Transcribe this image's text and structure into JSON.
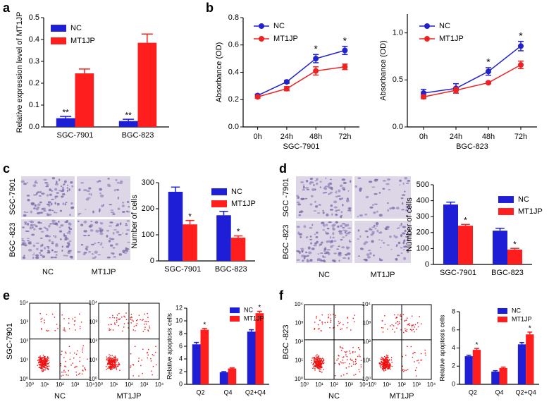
{
  "panel_labels": [
    "a",
    "b",
    "c",
    "d",
    "e",
    "f"
  ],
  "chart_data": [
    {
      "type": "bar",
      "ylabel": "Relative expression level of MT1JP",
      "categories": [
        "SGC-7901",
        "BGC-823"
      ],
      "series": [
        {
          "name": "NC",
          "color": "#1e1ed6",
          "values": [
            0.04,
            0.027
          ],
          "errors": [
            0.008,
            0.008
          ],
          "annotations": [
            "**",
            "**"
          ]
        },
        {
          "name": "MT1JP",
          "color": "#ff1e1e",
          "values": [
            0.245,
            0.385
          ],
          "errors": [
            0.02,
            0.04
          ],
          "annotations": [
            null,
            null
          ]
        }
      ],
      "ylim": [
        0,
        0.5
      ],
      "yticks": [
        {
          "value": 0,
          "label": "0.0"
        },
        0.1,
        0.2,
        0.3,
        0.4,
        0.5
      ],
      "legend": "upper left"
    },
    {
      "type": "line",
      "ylabel": "Absorbance (OD)",
      "xlabel": "SGC-7901",
      "categories": [
        "0h",
        "24h",
        "48h",
        "72h"
      ],
      "series": [
        {
          "name": "NC",
          "color": "#2222cc",
          "values": [
            0.23,
            0.33,
            0.5,
            0.56
          ],
          "errors": [
            0.01,
            0.01,
            0.03,
            0.03
          ],
          "annotations": [
            null,
            null,
            "*",
            "*"
          ]
        },
        {
          "name": "MT1JP",
          "color": "#ee2222",
          "values": [
            0.22,
            0.28,
            0.41,
            0.44
          ],
          "errors": [
            0.01,
            0.015,
            0.03,
            0.02
          ],
          "annotations": [
            null,
            null,
            null,
            null
          ]
        }
      ],
      "ylim": [
        0,
        0.8
      ],
      "yticks": [
        {
          "value": 0,
          "label": "0.0"
        },
        0.2,
        0.4,
        0.6,
        0.8
      ],
      "legend": "upper left"
    },
    {
      "type": "line",
      "ylabel": "Absorbance (OD)",
      "xlabel": "BGC-823",
      "categories": [
        "0h",
        "24h",
        "48h",
        "72h"
      ],
      "series": [
        {
          "name": "NC",
          "color": "#2222cc",
          "values": [
            0.36,
            0.41,
            0.59,
            0.86
          ],
          "errors": [
            0.04,
            0.05,
            0.04,
            0.05
          ],
          "annotations": [
            null,
            null,
            "*",
            "*"
          ]
        },
        {
          "name": "MT1JP",
          "color": "#ee2222",
          "values": [
            0.32,
            0.39,
            0.47,
            0.66
          ],
          "errors": [
            0.02,
            0.03,
            0.01,
            0.04
          ],
          "annotations": [
            null,
            null,
            null,
            null
          ]
        }
      ],
      "ylim": [
        0,
        1.2
      ],
      "yticks": [
        {
          "value": 0,
          "label": "0.0"
        },
        0.5,
        {
          "value": 1,
          "label": "1.0"
        }
      ],
      "legend": "upper left"
    },
    {
      "type": "bar",
      "ylabel": "Number of cells",
      "categories": [
        "SGC-7901",
        "BGC-823"
      ],
      "series": [
        {
          "name": "NC",
          "color": "#1e1ed6",
          "values": [
            265,
            175
          ],
          "errors": [
            18,
            15
          ],
          "annotations": [
            null,
            null
          ]
        },
        {
          "name": "MT1JP",
          "color": "#ff1e1e",
          "values": [
            140,
            89
          ],
          "errors": [
            15,
            7
          ],
          "annotations": [
            "*",
            "*"
          ]
        }
      ],
      "ylim": [
        0,
        300
      ],
      "yticks": [
        0,
        100,
        200,
        300
      ],
      "legend": "upper right"
    },
    {
      "type": "bar",
      "ylabel": "Number of cells",
      "categories": [
        "SGC-7901",
        "BGC-823"
      ],
      "series": [
        {
          "name": "NC",
          "color": "#1e1ed6",
          "values": [
            376,
            212
          ],
          "errors": [
            15,
            15
          ],
          "annotations": [
            null,
            null
          ]
        },
        {
          "name": "MT1JP",
          "color": "#ff1e1e",
          "values": [
            243,
            93
          ],
          "errors": [
            8,
            8
          ],
          "annotations": [
            "*",
            "*"
          ]
        }
      ],
      "ylim": [
        0,
        500
      ],
      "yticks": [
        0,
        100,
        200,
        300,
        400,
        500
      ],
      "legend": "upper right"
    },
    {
      "type": "bar",
      "ylabel": "Relative apoptosis cells",
      "categories": [
        "Q2",
        "Q4",
        "Q2+Q4"
      ],
      "series": [
        {
          "name": "NC",
          "color": "#1e1ed6",
          "values": [
            6.3,
            1.9,
            8.3
          ],
          "errors": [
            0.3,
            0.1,
            0.3
          ],
          "annotations": [
            null,
            null,
            null
          ]
        },
        {
          "name": "MT1JP",
          "color": "#ff1e1e",
          "values": [
            8.6,
            2.5,
            11.2
          ],
          "errors": [
            0.2,
            0.1,
            0.3
          ],
          "annotations": [
            "*",
            null,
            "*"
          ]
        }
      ],
      "ylim": [
        0,
        12
      ],
      "yticks": [
        0,
        2,
        4,
        6,
        8,
        10,
        12
      ],
      "legend": "upper right"
    },
    {
      "type": "bar",
      "ylabel": "Relative apoptosis cells",
      "categories": [
        "Q2",
        "Q4",
        "Q2+Q4"
      ],
      "series": [
        {
          "name": "NC",
          "color": "#1e1ed6",
          "values": [
            3.1,
            1.4,
            4.4
          ],
          "errors": [
            0.1,
            0.1,
            0.2
          ],
          "annotations": [
            null,
            null,
            null
          ]
        },
        {
          "name": "MT1JP",
          "color": "#ff1e1e",
          "values": [
            3.8,
            1.8,
            5.5
          ],
          "errors": [
            0.15,
            0.1,
            0.25
          ],
          "annotations": [
            "*",
            null,
            "*"
          ]
        }
      ],
      "ylim": [
        0,
        8
      ],
      "yticks": [
        0,
        2,
        4,
        6,
        8
      ],
      "legend": "upper right"
    }
  ],
  "micrographs": [
    {
      "rows": [
        "SGC-7901",
        "BGC -823"
      ],
      "cols": [
        "NC",
        "MT1JP"
      ]
    },
    {
      "rows": [
        "SGC -7901",
        "BGC -823"
      ],
      "cols": [
        "NC",
        "MT1JP"
      ]
    }
  ],
  "flow_panels": [
    {
      "row": "SGC-7901",
      "cols": [
        "NC",
        "MT1JP"
      ]
    },
    {
      "row": "BGC -823",
      "cols": [
        "NC",
        "MT1JP"
      ]
    }
  ],
  "flow_ticks": [
    "10⁰",
    "10¹",
    "10²",
    "10³",
    "10⁴"
  ]
}
